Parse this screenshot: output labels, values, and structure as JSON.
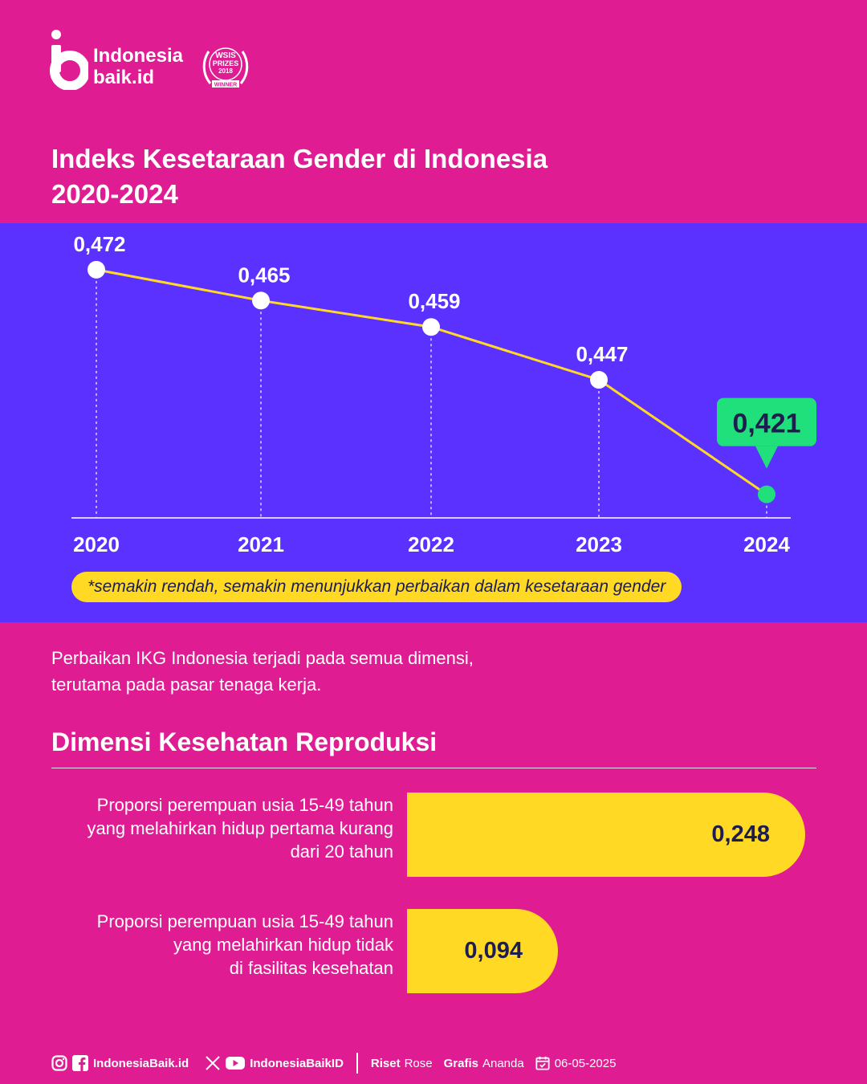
{
  "header": {
    "brand_line1": "Indonesia",
    "brand_line2": "baik.id",
    "award_line1": "WSIS",
    "award_line2": "PRIZES",
    "award_line3": "2018",
    "award_line4": "WINNER",
    "title_line1": "Indeks Kesetaraan Gender di Indonesia",
    "title_line2": "2020-2024"
  },
  "colors": {
    "background": "#E01C93",
    "panel": "#5A31FF",
    "line": "#FFD923",
    "highlight": "#1FE07A",
    "dark_text": "#1D1D4F"
  },
  "chart_data": [
    {
      "type": "line",
      "title": "Indeks Kesetaraan Gender di Indonesia 2020-2024",
      "x": [
        "2020",
        "2021",
        "2022",
        "2023",
        "2024"
      ],
      "series": [
        {
          "values": [
            0.472,
            0.465,
            0.459,
            0.447,
            0.421
          ]
        }
      ],
      "data_labels": [
        "0,472",
        "0,465",
        "0,459",
        "0,447",
        "0,421"
      ],
      "highlight_index": 4,
      "ylim": [
        0.41,
        0.48
      ],
      "grid": false,
      "note": "*semakin rendah, semakin menunjukkan perbaikan dalam kesetaraan gender"
    },
    {
      "type": "bar",
      "title": "Dimensi Kesehatan Reproduksi",
      "categories": [
        [
          "Proporsi perempuan usia 15-49 tahun",
          "yang melahirkan hidup pertama kurang",
          "dari 20 tahun"
        ],
        [
          "Proporsi perempuan usia 15-49 tahun",
          "yang melahirkan hidup tidak",
          "di fasilitas kesehatan"
        ]
      ],
      "values": [
        0.248,
        0.094
      ],
      "value_labels": [
        "0,248",
        "0,094"
      ],
      "xlim": [
        0,
        0.26
      ]
    }
  ],
  "summary": {
    "line1": "Perbaikan IKG Indonesia terjadi pada semua dimensi,",
    "line2": "terutama pada pasar tenaga kerja."
  },
  "footer": {
    "handle1": "IndonesiaBaik.id",
    "handle2": "IndonesiaBaikID",
    "riset_label": "Riset",
    "riset_name": "Rose",
    "grafis_label": "Grafis",
    "grafis_name": "Ananda",
    "date": "06-05-2025",
    "icons": [
      "instagram-icon",
      "facebook-icon",
      "x-icon",
      "youtube-icon",
      "calendar-icon"
    ]
  }
}
